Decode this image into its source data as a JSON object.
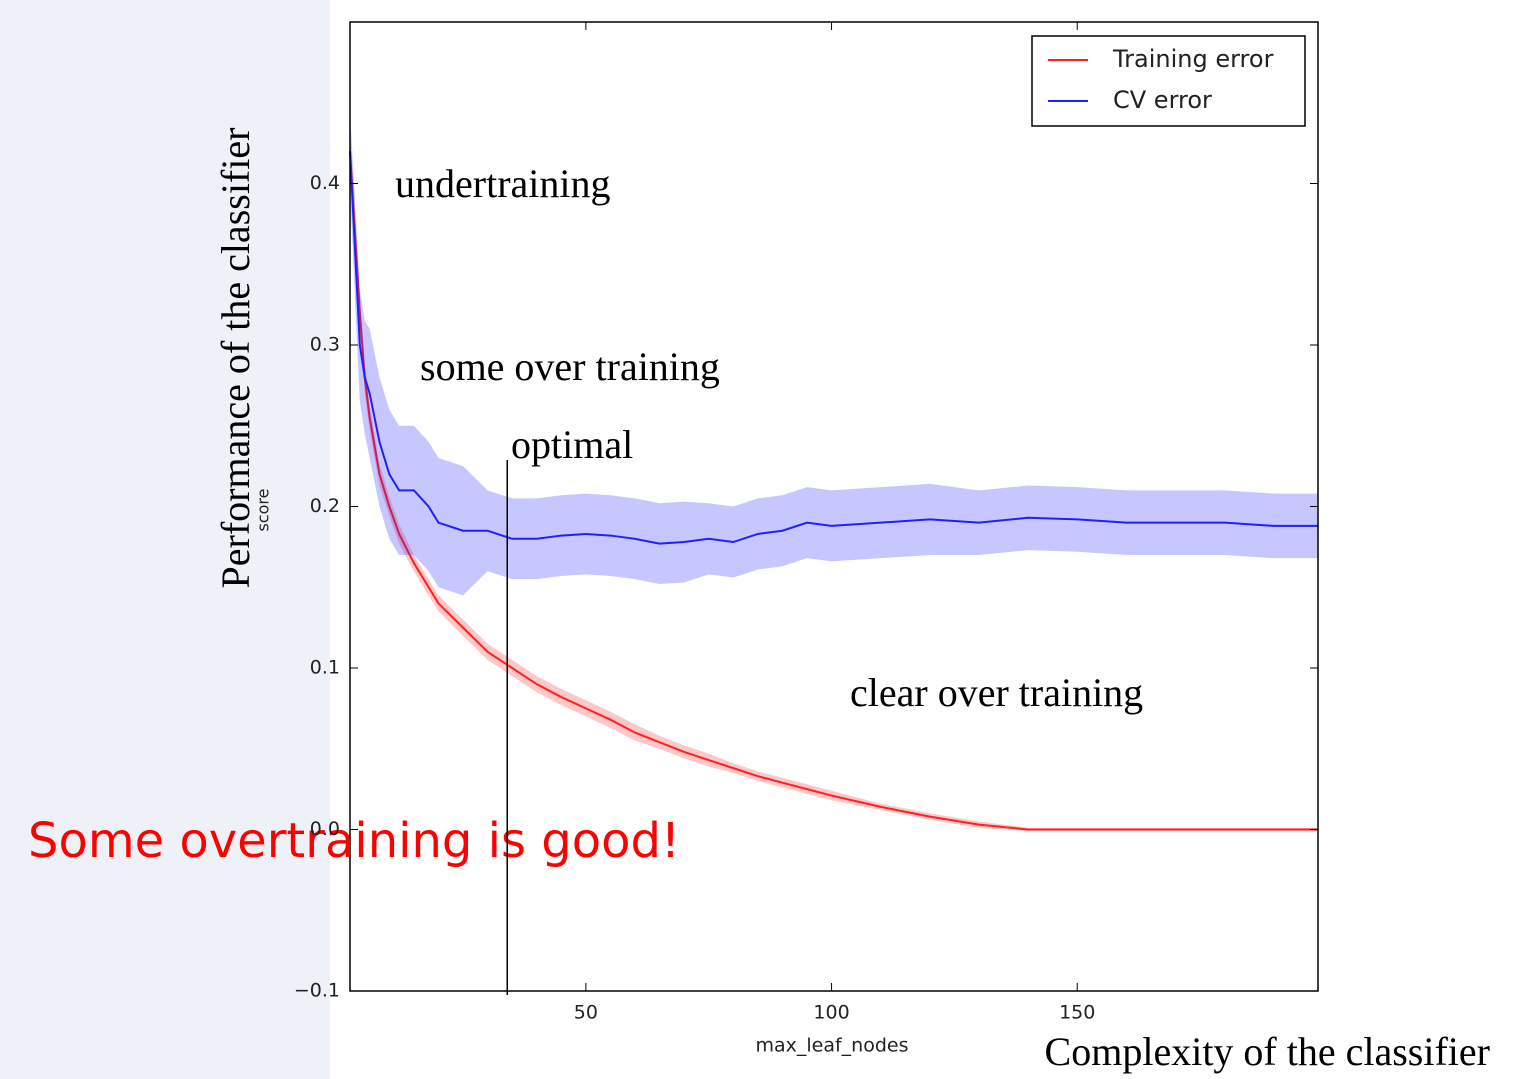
{
  "chart_data": {
    "type": "line",
    "xlabel": "max_leaf_nodes",
    "ylabel": "score",
    "outer_xlabel": "Complexity of the classifier",
    "outer_ylabel": "Performance of the classifier",
    "xlim": [
      2,
      199
    ],
    "ylim": [
      -0.1,
      0.5
    ],
    "xticks": [
      50,
      100,
      150
    ],
    "yticks": [
      {
        "value": -0.1,
        "label": "−0.1"
      },
      {
        "value": 0,
        "label": "0.0"
      },
      0.1,
      0.2,
      0.3,
      0.4
    ],
    "legend": "upper right",
    "x": [
      2,
      3,
      4,
      5,
      6,
      8,
      10,
      12,
      15,
      18,
      20,
      25,
      30,
      35,
      40,
      45,
      50,
      55,
      60,
      65,
      70,
      75,
      80,
      85,
      90,
      95,
      100,
      110,
      120,
      130,
      140,
      150,
      160,
      170,
      180,
      190,
      199
    ],
    "series": [
      {
        "name": "Training error",
        "color": "#ff2020",
        "values": [
          0.42,
          0.37,
          0.32,
          0.28,
          0.255,
          0.22,
          0.2,
          0.183,
          0.165,
          0.15,
          0.14,
          0.125,
          0.11,
          0.1,
          0.09,
          0.082,
          0.075,
          0.068,
          0.06,
          0.054,
          0.048,
          0.043,
          0.038,
          0.033,
          0.029,
          0.025,
          0.021,
          0.014,
          0.008,
          0.003,
          0,
          0,
          0,
          0,
          0,
          0,
          0
        ],
        "band": [
          0.012,
          0.012,
          0.01,
          0.01,
          0.008,
          0.007,
          0.006,
          0.006,
          0.005,
          0.005,
          0.005,
          0.005,
          0.005,
          0.005,
          0.005,
          0.005,
          0.005,
          0.005,
          0.005,
          0.004,
          0.004,
          0.004,
          0.003,
          0.003,
          0.003,
          0.003,
          0.003,
          0.002,
          0.002,
          0.002,
          0.001,
          0.001,
          0.001,
          0.001,
          0.001,
          0.001,
          0.001
        ]
      },
      {
        "name": "CV error",
        "color": "#2020ff",
        "values": [
          0.42,
          0.36,
          0.3,
          0.28,
          0.27,
          0.24,
          0.22,
          0.21,
          0.21,
          0.2,
          0.19,
          0.185,
          0.185,
          0.18,
          0.18,
          0.182,
          0.183,
          0.182,
          0.18,
          0.177,
          0.178,
          0.18,
          0.178,
          0.183,
          0.185,
          0.19,
          0.188,
          0.19,
          0.192,
          0.19,
          0.193,
          0.192,
          0.19,
          0.19,
          0.19,
          0.188,
          0.188
        ],
        "band": [
          0.025,
          0.03,
          0.035,
          0.035,
          0.04,
          0.04,
          0.04,
          0.04,
          0.04,
          0.04,
          0.04,
          0.04,
          0.025,
          0.025,
          0.025,
          0.025,
          0.025,
          0.025,
          0.025,
          0.025,
          0.025,
          0.022,
          0.022,
          0.022,
          0.022,
          0.022,
          0.022,
          0.022,
          0.022,
          0.02,
          0.02,
          0.02,
          0.02,
          0.02,
          0.02,
          0.02,
          0.02
        ]
      }
    ],
    "annotations": [
      {
        "text": "undertraining"
      },
      {
        "text": "some over training"
      },
      {
        "text": "optimal",
        "x": 34
      },
      {
        "text": "clear over training"
      },
      {
        "text": "Some overtraining is good!"
      }
    ]
  }
}
